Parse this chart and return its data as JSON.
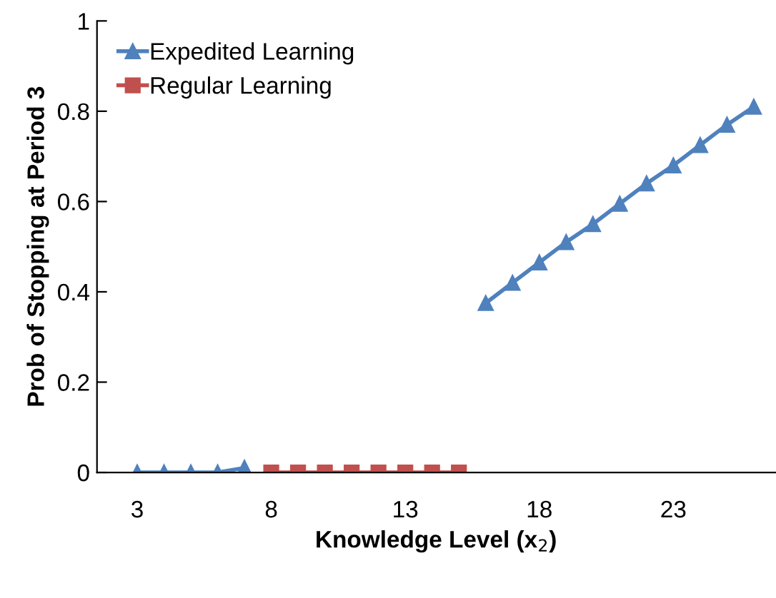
{
  "chart_data": {
    "type": "line",
    "xlabel": "Knowledge Level (x$_{2}$)",
    "ylabel": "Prob of Stopping at Period 3",
    "x": [
      3,
      4,
      5,
      6,
      7,
      8,
      9,
      10,
      11,
      12,
      13,
      14,
      15,
      16,
      17,
      18,
      19,
      20,
      21,
      22,
      23,
      24,
      25,
      26
    ],
    "series": [
      {
        "name": "Expedited Learning",
        "color": "#4f81bd",
        "marker": "triangle",
        "values": [
          0,
          0,
          0,
          0,
          0.01,
          null,
          null,
          null,
          null,
          null,
          null,
          null,
          null,
          0.375,
          0.42,
          0.465,
          0.51,
          0.55,
          0.595,
          0.64,
          0.68,
          0.725,
          0.77,
          0.81
        ]
      },
      {
        "name": "Regular Learning",
        "color": "#c0504d",
        "marker": "square",
        "values": [
          null,
          null,
          null,
          null,
          null,
          0,
          0,
          0,
          0,
          0,
          0,
          0,
          0,
          null,
          null,
          null,
          null,
          null,
          null,
          null,
          null,
          null,
          null,
          null
        ]
      }
    ],
    "xlim": [
      1.5,
      26.8
    ],
    "xticks": [
      3,
      8,
      13,
      18,
      23
    ],
    "ylim": [
      0,
      1
    ],
    "yticks": [
      0,
      0.2,
      0.4,
      0.6,
      0.8,
      1
    ],
    "grid": false,
    "legend": "top left"
  }
}
